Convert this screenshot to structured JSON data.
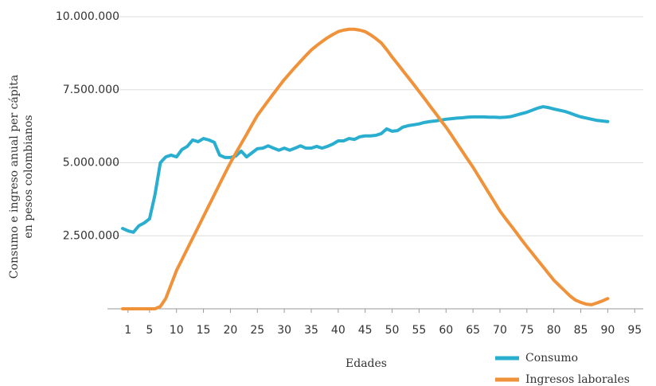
{
  "chart_data": {
    "type": "line",
    "xlabel": "Edades",
    "ylabel": [
      "Consumo e ingreso anual per cápita",
      "en pesos colombianos"
    ],
    "x": [
      0,
      1,
      2,
      3,
      4,
      5,
      6,
      7,
      8,
      9,
      10,
      11,
      12,
      13,
      14,
      15,
      16,
      17,
      18,
      19,
      20,
      21,
      22,
      23,
      24,
      25,
      26,
      27,
      28,
      29,
      30,
      31,
      32,
      33,
      34,
      35,
      36,
      37,
      38,
      39,
      40,
      41,
      42,
      43,
      44,
      45,
      46,
      47,
      48,
      49,
      50,
      51,
      52,
      53,
      54,
      55,
      56,
      57,
      58,
      59,
      60,
      61,
      62,
      63,
      64,
      65,
      66,
      67,
      68,
      69,
      70,
      71,
      72,
      73,
      74,
      75,
      76,
      77,
      78,
      79,
      80,
      81,
      82,
      83,
      84,
      85,
      86,
      87,
      88,
      89,
      90
    ],
    "series": [
      {
        "name": "Consumo",
        "color": "#29aed0",
        "values": [
          2750000,
          2670000,
          2620000,
          2840000,
          2940000,
          3080000,
          3900000,
          5000000,
          5200000,
          5260000,
          5200000,
          5450000,
          5560000,
          5780000,
          5720000,
          5830000,
          5780000,
          5700000,
          5260000,
          5180000,
          5180000,
          5230000,
          5400000,
          5200000,
          5340000,
          5480000,
          5500000,
          5580000,
          5500000,
          5430000,
          5500000,
          5430000,
          5500000,
          5580000,
          5500000,
          5500000,
          5560000,
          5500000,
          5560000,
          5640000,
          5750000,
          5750000,
          5830000,
          5800000,
          5890000,
          5920000,
          5920000,
          5940000,
          6000000,
          6160000,
          6080000,
          6100000,
          6220000,
          6270000,
          6300000,
          6330000,
          6380000,
          6410000,
          6430000,
          6460000,
          6490000,
          6510000,
          6530000,
          6540000,
          6560000,
          6570000,
          6570000,
          6570000,
          6560000,
          6560000,
          6550000,
          6560000,
          6580000,
          6630000,
          6680000,
          6730000,
          6800000,
          6870000,
          6920000,
          6890000,
          6840000,
          6800000,
          6760000,
          6700000,
          6630000,
          6570000,
          6530000,
          6490000,
          6450000,
          6430000,
          6410000
        ]
      },
      {
        "name": "Ingresos laborales",
        "color": "#f0923a",
        "values": [
          0,
          0,
          0,
          0,
          0,
          0,
          0,
          80000,
          350000,
          830000,
          1310000,
          1680000,
          2050000,
          2420000,
          2790000,
          3160000,
          3530000,
          3900000,
          4270000,
          4640000,
          5000000,
          5330000,
          5650000,
          5970000,
          6300000,
          6620000,
          6870000,
          7120000,
          7370000,
          7610000,
          7850000,
          8060000,
          8270000,
          8470000,
          8670000,
          8860000,
          9010000,
          9150000,
          9280000,
          9390000,
          9490000,
          9540000,
          9570000,
          9570000,
          9540000,
          9490000,
          9380000,
          9250000,
          9100000,
          8870000,
          8620000,
          8390000,
          8150000,
          7920000,
          7680000,
          7440000,
          7200000,
          6950000,
          6710000,
          6460000,
          6220000,
          5950000,
          5670000,
          5400000,
          5120000,
          4850000,
          4550000,
          4250000,
          3950000,
          3650000,
          3350000,
          3100000,
          2860000,
          2620000,
          2370000,
          2130000,
          1900000,
          1670000,
          1440000,
          1210000,
          980000,
          800000,
          620000,
          440000,
          300000,
          220000,
          160000,
          140000,
          200000,
          270000,
          350000
        ]
      }
    ],
    "xlim": [
      0,
      96
    ],
    "xticks": [
      1,
      5,
      10,
      15,
      20,
      25,
      30,
      35,
      40,
      45,
      50,
      55,
      60,
      65,
      70,
      75,
      80,
      85,
      90,
      95
    ],
    "ylim": [
      0,
      10000000
    ],
    "yticks": [
      {
        "value": 2500000,
        "label": "2.500.000"
      },
      {
        "value": 5000000,
        "label": "5.000.000"
      },
      {
        "value": 7500000,
        "label": "7.500.000"
      },
      {
        "value": 10000000,
        "label": "10.000.000"
      }
    ],
    "grid": true,
    "legend": "lower right"
  }
}
